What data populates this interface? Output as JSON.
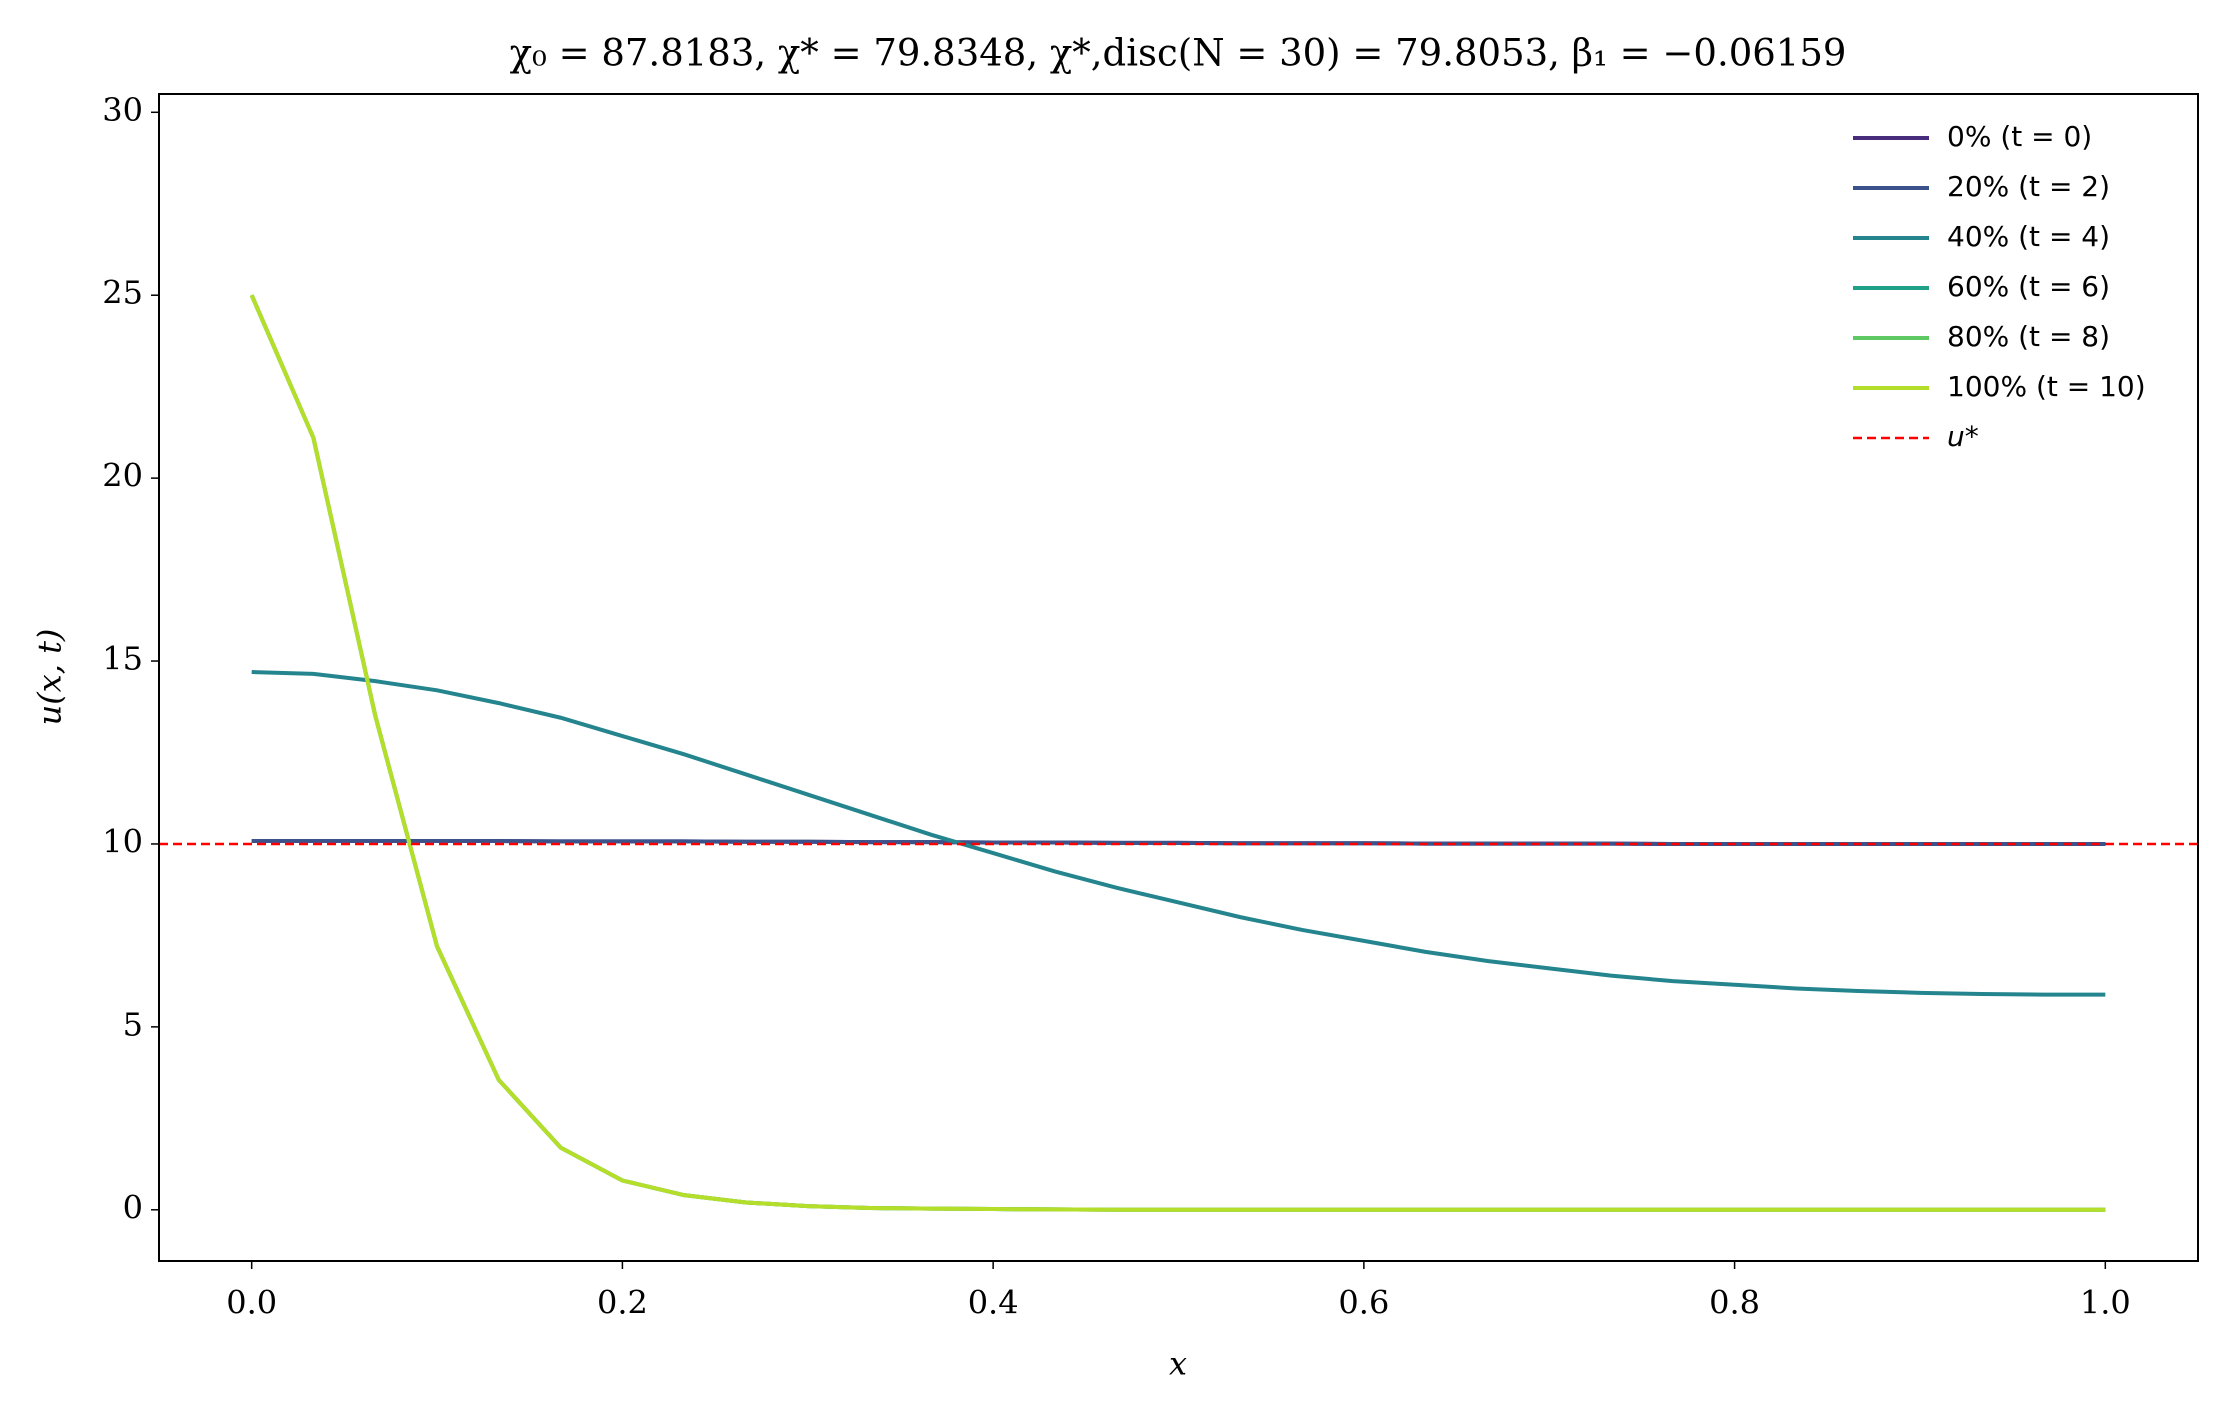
{
  "chart_data": {
    "type": "line",
    "title": "χ₀ = 87.8183,  χ* = 79.8348,  χ*,disc(N = 30) = 79.8053,  β₁ = −0.06159",
    "xlabel": "x",
    "ylabel": "u(x, t)",
    "x": [
      0,
      0.0333,
      0.0667,
      0.1,
      0.1333,
      0.1667,
      0.2,
      0.2333,
      0.2667,
      0.3,
      0.3333,
      0.3667,
      0.4,
      0.4333,
      0.4667,
      0.5,
      0.5333,
      0.5667,
      0.6,
      0.6333,
      0.6667,
      0.7,
      0.7333,
      0.7667,
      0.8,
      0.8333,
      0.8667,
      0.9,
      0.9333,
      0.9667,
      1
    ],
    "series": [
      {
        "name": "0% (t = 0)",
        "color": "#472d7b",
        "values": [
          10.08,
          10.08,
          10.08,
          10.08,
          10.08,
          10.07,
          10.07,
          10.07,
          10.06,
          10.06,
          10.05,
          10.05,
          10.04,
          10.04,
          10.03,
          10.03,
          10.02,
          10.02,
          10.02,
          10.01,
          10.01,
          10.01,
          10.01,
          10.0,
          10.0,
          10.0,
          10.0,
          10.0,
          10.0,
          10.0,
          10.0
        ]
      },
      {
        "name": "20% (t = 2)",
        "color": "#3b528b",
        "values": [
          10.08,
          10.08,
          10.08,
          10.08,
          10.08,
          10.07,
          10.07,
          10.07,
          10.06,
          10.06,
          10.05,
          10.05,
          10.04,
          10.04,
          10.03,
          10.03,
          10.02,
          10.02,
          10.02,
          10.01,
          10.01,
          10.01,
          10.01,
          10.0,
          10.0,
          10.0,
          10.0,
          10.0,
          10.0,
          10.0,
          10.0
        ]
      },
      {
        "name": "40% (t = 4)",
        "color": "#25858e",
        "values": [
          14.7,
          14.65,
          14.45,
          14.2,
          13.85,
          13.45,
          12.95,
          12.45,
          11.9,
          11.35,
          10.8,
          10.25,
          9.75,
          9.25,
          8.8,
          8.4,
          8.0,
          7.65,
          7.35,
          7.05,
          6.8,
          6.6,
          6.4,
          6.25,
          6.15,
          6.05,
          5.98,
          5.93,
          5.9,
          5.88,
          5.88
        ]
      },
      {
        "name": "60% (t = 6)",
        "color": "#1fa187",
        "values": [
          25,
          21.1,
          13.5,
          7.2,
          3.55,
          1.7,
          0.8,
          0.4,
          0.2,
          0.1,
          0.05,
          0.03,
          0.02,
          0.01,
          0,
          0,
          0,
          0,
          0,
          0,
          0,
          0,
          0,
          0,
          0,
          0,
          0,
          0,
          0,
          0,
          0
        ]
      },
      {
        "name": "80% (t = 8)",
        "color": "#5ec962",
        "values": [
          25,
          21.1,
          13.5,
          7.2,
          3.55,
          1.7,
          0.8,
          0.4,
          0.2,
          0.1,
          0.05,
          0.03,
          0.02,
          0.01,
          0,
          0,
          0,
          0,
          0,
          0,
          0,
          0,
          0,
          0,
          0,
          0,
          0,
          0,
          0,
          0,
          0
        ]
      },
      {
        "name": "100% (t = 10)",
        "color": "#b5de2b",
        "values": [
          25,
          21.1,
          13.5,
          7.2,
          3.55,
          1.7,
          0.8,
          0.4,
          0.2,
          0.1,
          0.05,
          0.03,
          0.02,
          0.01,
          0,
          0,
          0,
          0,
          0,
          0,
          0,
          0,
          0,
          0,
          0,
          0,
          0,
          0,
          0,
          0,
          0
        ]
      }
    ],
    "hline": {
      "name": "u*",
      "value": 10,
      "color": "#ff0000"
    },
    "xlim": [
      -0.05,
      1.05
    ],
    "ylim": [
      -1.4,
      30.5
    ],
    "xticks": [
      {
        "value": 0,
        "label": "0.0"
      },
      {
        "value": 0.2,
        "label": "0.2"
      },
      {
        "value": 0.4,
        "label": "0.4"
      },
      {
        "value": 0.6,
        "label": "0.6"
      },
      {
        "value": 0.8,
        "label": "0.8"
      },
      {
        "value": 1,
        "label": "1.0"
      }
    ],
    "yticks": [
      0,
      5,
      10,
      15,
      20,
      25,
      30
    ],
    "legend": "upper right"
  }
}
